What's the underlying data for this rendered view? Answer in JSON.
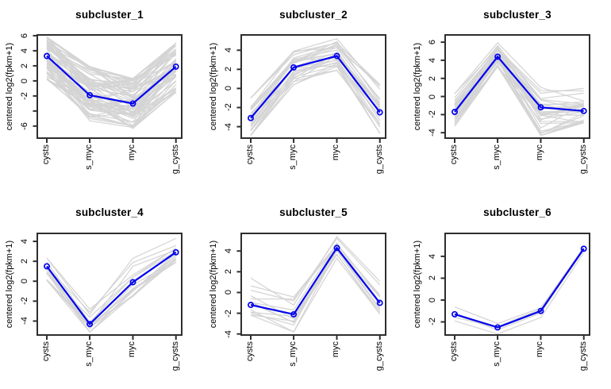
{
  "figure": {
    "background": "#ffffff",
    "description": "2x3 grid of R-style expression profile plots"
  },
  "chart_data": {
    "type": "line",
    "layout": "grid-2x3",
    "categories": [
      "cysts",
      "s_myc",
      "myc",
      "g_cysts"
    ],
    "ylabel": "centered log2(fpkm+1)",
    "colors": {
      "mean_line": "#0000ee",
      "member_lines": "#d4d4d4",
      "axis": "#2e2e2e",
      "text": "#000000"
    },
    "panels": [
      {
        "title": "subcluster_1",
        "mean": [
          3.3,
          -1.9,
          -3.0,
          1.9
        ],
        "ylim": [
          -7.6,
          6.1
        ],
        "yticks": [
          6,
          4,
          2,
          0,
          -2,
          -4,
          -6
        ],
        "unlabeled_ticks": [
          -4
        ],
        "member_min": [
          0.2,
          -5.3,
          -6.3,
          -1.5
        ],
        "member_max": [
          5.8,
          1.9,
          0.3,
          5.0
        ],
        "n_member_lines": 70
      },
      {
        "title": "subcluster_2",
        "mean": [
          -3.1,
          2.2,
          3.4,
          -2.5
        ],
        "ylim": [
          -5.2,
          5.6
        ],
        "yticks": [
          4,
          2,
          0,
          -2,
          -4
        ],
        "unlabeled_ticks": [],
        "member_min": [
          -4.9,
          0.4,
          1.9,
          -4.7
        ],
        "member_max": [
          -1.0,
          3.9,
          5.2,
          0.4
        ],
        "n_member_lines": 28
      },
      {
        "title": "subcluster_3",
        "mean": [
          -1.7,
          4.4,
          -1.2,
          -1.6
        ],
        "ylim": [
          -4.6,
          6.8
        ],
        "yticks": [
          6,
          4,
          2,
          0,
          -2,
          -4
        ],
        "unlabeled_ticks": [],
        "member_min": [
          -3.3,
          3.3,
          -4.3,
          -2.9
        ],
        "member_max": [
          0.3,
          6.2,
          1.0,
          0.9
        ],
        "n_member_lines": 32
      },
      {
        "title": "subcluster_4",
        "mean": [
          1.5,
          -4.3,
          -0.1,
          2.9
        ],
        "ylim": [
          -5.4,
          4.8
        ],
        "yticks": [
          4,
          2,
          0,
          -2,
          -4
        ],
        "unlabeled_ticks": [],
        "member_min": [
          0.1,
          -5.1,
          -1.9,
          1.9
        ],
        "member_max": [
          2.5,
          -2.8,
          2.3,
          4.3
        ],
        "n_member_lines": 16
      },
      {
        "title": "subcluster_5",
        "mean": [
          -1.2,
          -2.1,
          4.3,
          -1.0
        ],
        "ylim": [
          -4.1,
          5.7
        ],
        "yticks": [
          4,
          2,
          0,
          -2,
          -4
        ],
        "unlabeled_ticks": [],
        "member_min": [
          -2.8,
          -3.8,
          3.3,
          -2.1
        ],
        "member_max": [
          1.4,
          -0.4,
          5.4,
          1.2
        ],
        "n_member_lines": 13
      },
      {
        "title": "subcluster_6",
        "mean": [
          -1.3,
          -2.5,
          -1.0,
          4.7
        ],
        "ylim": [
          -3.2,
          6.1
        ],
        "yticks": [
          4,
          2,
          0,
          -2
        ],
        "unlabeled_ticks": [],
        "member_min": [
          -2.0,
          -3.1,
          -1.6,
          4.3
        ],
        "member_max": [
          -0.6,
          -2.1,
          -0.5,
          5.0
        ],
        "n_member_lines": 5
      }
    ]
  }
}
